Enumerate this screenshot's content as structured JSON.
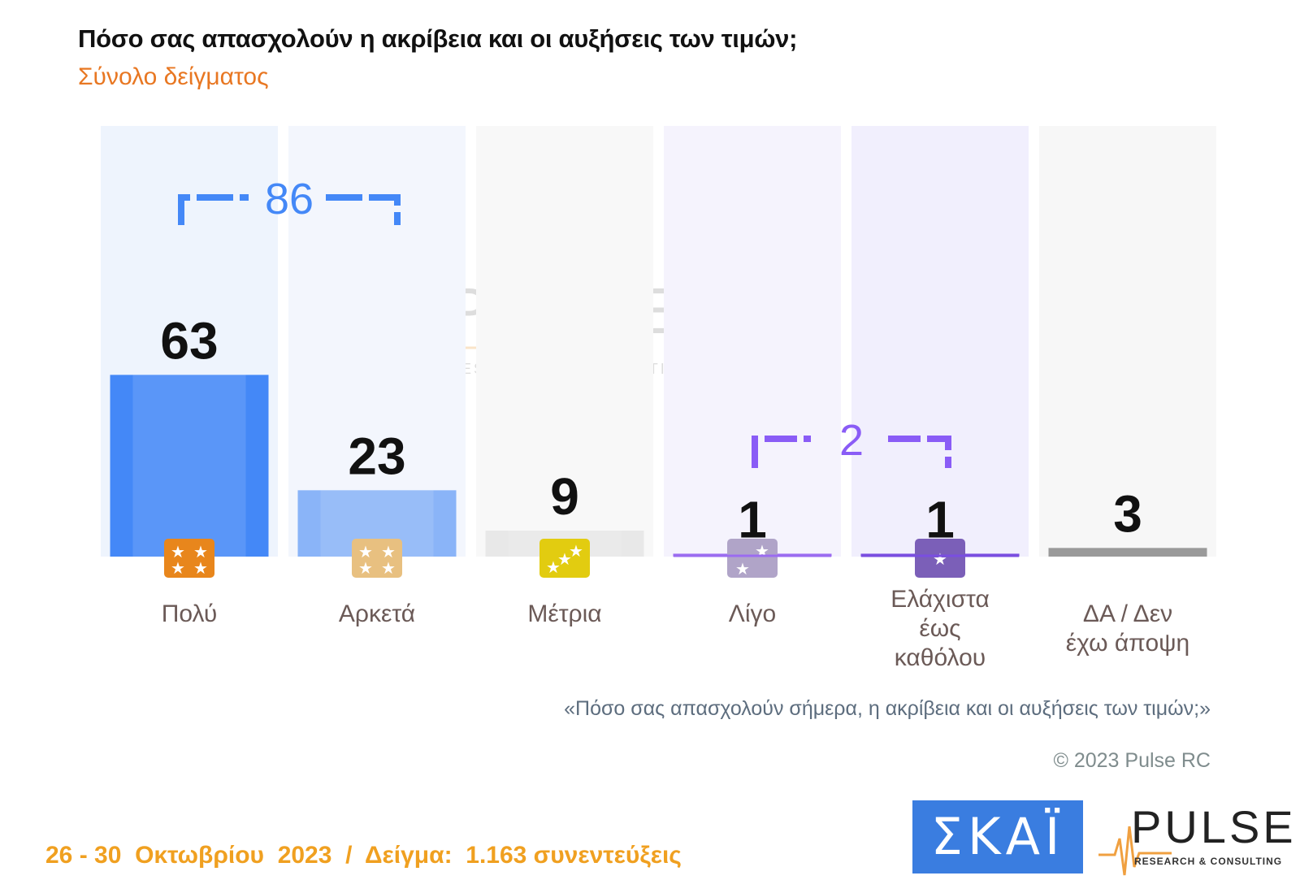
{
  "header": {
    "title": "Πόσο σας απασχολούν η ακρίβεια και οι αυξήσεις των τιμών;",
    "subtitle": "Σύνολο δείγματος"
  },
  "chart_data": {
    "type": "bar",
    "categories": [
      "Πολύ",
      "Αρκετά",
      "Μέτρια",
      "Λίγο",
      "Ελάχιστα έως καθόλου",
      "ΔΑ / Δεν έχω άποψη"
    ],
    "category_lines": [
      [
        "Πολύ"
      ],
      [
        "Αρκετά"
      ],
      [
        "Μέτρια"
      ],
      [
        "Λίγο"
      ],
      [
        "Ελάχιστα",
        "έως",
        "καθόλου"
      ],
      [
        "ΔΑ / Δεν",
        "έχω άποψη"
      ]
    ],
    "values": [
      63,
      23,
      9,
      1,
      1,
      3
    ],
    "value_labels": [
      "63",
      "23",
      "9",
      "1",
      "1",
      "3"
    ],
    "ylim": [
      0,
      100
    ],
    "bar_colors": [
      "#4488f7",
      "#8ab4f8",
      "#e6e6e6",
      "#9b6cf0",
      "#7a4ee0",
      "#9a9a9a"
    ],
    "column_bg_colors": [
      "#eef4fd",
      "#f3f6fd",
      "#f8f8f8",
      "#f5f3fd",
      "#f1effd",
      "#f7f7f7"
    ],
    "star_badge_colors": [
      "#e8861c",
      "#e8c080",
      "#e2cc10",
      "#b0a4c8",
      "#7b5fb8",
      ""
    ],
    "star_counts": [
      4,
      4,
      3,
      2,
      1,
      0
    ],
    "groups": [
      {
        "label": "86",
        "from": 0,
        "to": 1,
        "color": "#4488f7"
      },
      {
        "label": "2",
        "from": 3,
        "to": 4,
        "color": "#8a5cf6"
      }
    ]
  },
  "notes": {
    "question": "«Πόσο σας απασχολούν σήμερα, η ακρίβεια και οι αυξήσεις των τιμών;»",
    "copyright": "© 2023 Pulse RC"
  },
  "footer": {
    "text": "26 - 30  Οκτωβρίου  2023  /  Δείγμα:  1.163 συνεντεύξεις"
  },
  "logos": {
    "skai": "ΣΚΑΪ",
    "pulse": "PULSE",
    "pulse_tagline": "RESEARCH & CONSULTING"
  }
}
